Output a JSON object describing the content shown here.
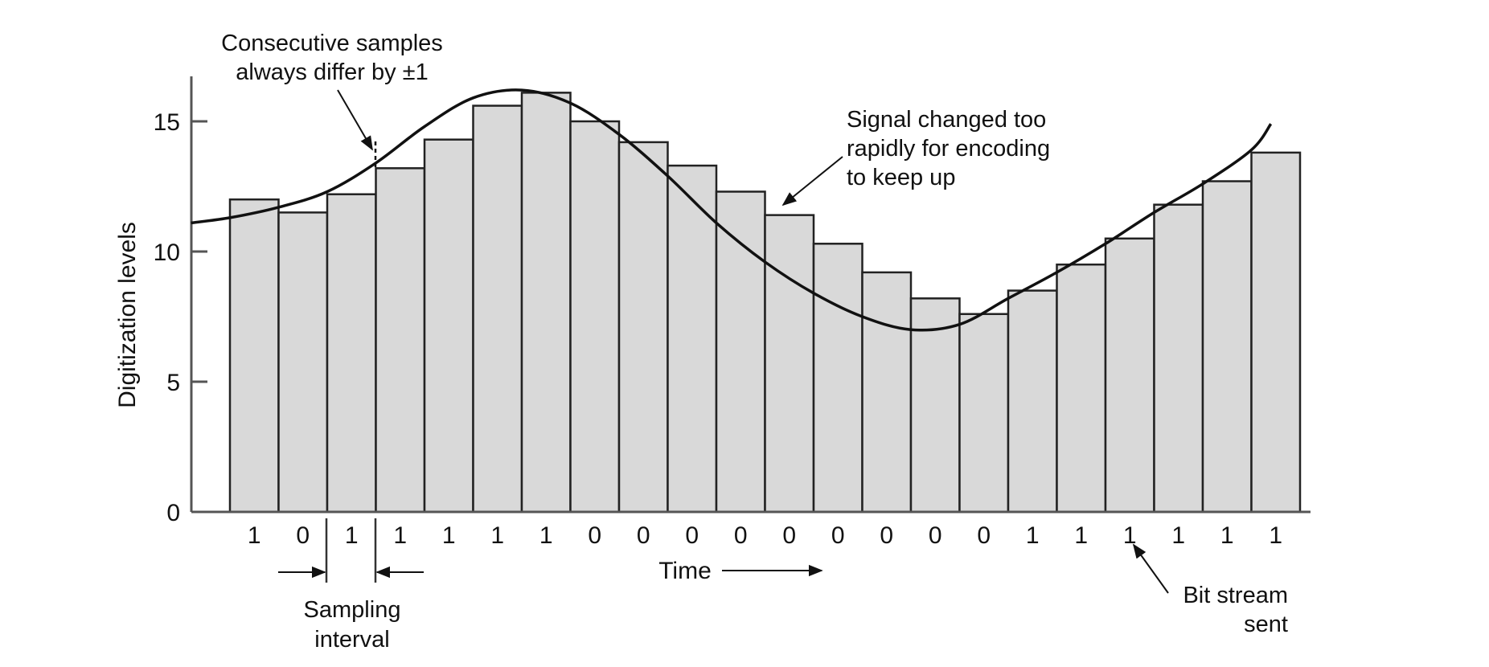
{
  "chart_data": {
    "type": "bar",
    "ylabel": "Digitization levels",
    "xlabel": "Time",
    "ylim": [
      0,
      16.5
    ],
    "yticks": [
      0,
      5,
      10,
      15
    ],
    "values": [
      12,
      11.5,
      12.2,
      13.2,
      14.3,
      15.6,
      16.1,
      15,
      14.2,
      13.3,
      12.3,
      11.4,
      10.3,
      9.2,
      8.2,
      7.6,
      8.5,
      9.5,
      10.5,
      11.8,
      12.7,
      13.8
    ],
    "bits": [
      "1",
      "0",
      "1",
      "1",
      "1",
      "1",
      "1",
      "0",
      "0",
      "0",
      "0",
      "0",
      "0",
      "0",
      "0",
      "0",
      "1",
      "1",
      "1",
      "1",
      "1",
      "1"
    ],
    "signal_curve": {
      "x": [
        -0.8,
        0,
        1,
        2,
        3,
        4,
        5,
        6,
        7,
        8,
        9,
        10,
        11,
        12,
        13,
        14,
        15,
        16,
        17,
        18,
        19,
        20,
        21,
        21.4
      ],
      "y": [
        11.1,
        11.3,
        11.7,
        12.3,
        13.4,
        14.8,
        15.9,
        16.2,
        15.7,
        14.5,
        12.9,
        11.1,
        9.6,
        8.4,
        7.5,
        7.0,
        7.2,
        8.2,
        9.2,
        10.3,
        11.5,
        12.6,
        13.9,
        14.9
      ]
    },
    "annotations": {
      "consecutive_line1": "Consecutive samples",
      "consecutive_line2": "always differ by ±1",
      "signal_line1": "Signal changed too",
      "signal_line2": "rapidly for encoding",
      "signal_line3": "to keep up",
      "bitstream_line1": "Bit stream",
      "bitstream_line2": "sent",
      "sampling_line1": "Sampling",
      "sampling_line2": "interval"
    },
    "colors": {
      "bar_fill": "#d9d9d9",
      "stroke": "#111111"
    }
  }
}
